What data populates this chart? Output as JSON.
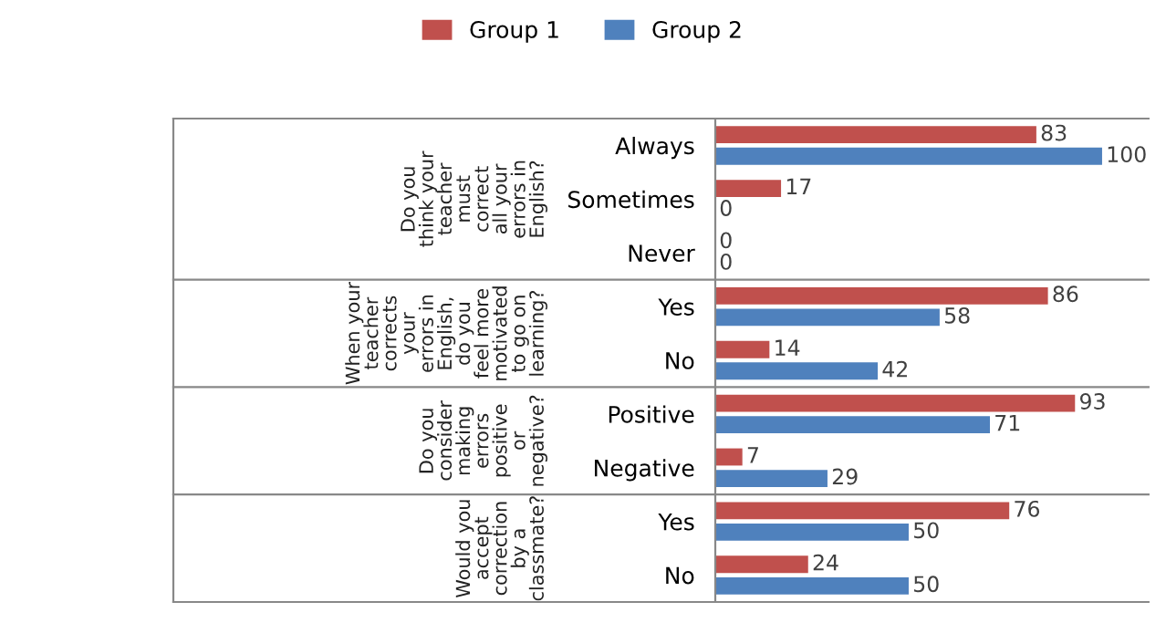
{
  "chart_data": {
    "type": "bar",
    "orientation": "horizontal",
    "categories": [
      "Always",
      "Sometimes",
      "Never",
      "Yes",
      "No",
      "Positive",
      "Negative",
      "Yes",
      "No"
    ],
    "series": [
      {
        "name": "Group 1",
        "color": "#c0504d",
        "values": [
          83,
          17,
          0,
          86,
          14,
          93,
          7,
          76,
          24
        ]
      },
      {
        "name": "Group 2",
        "color": "#4f81bd",
        "values": [
          100,
          0,
          0,
          58,
          42,
          71,
          29,
          50,
          50
        ]
      }
    ],
    "annotations": [
      "Do you think your teacher must correct all your errors in English?",
      "When your teacher corrects your errors in English, do you feel more motivated to go on learning?",
      "Do you consider making errors positive or negative?",
      "Would you accept correction by a classmate?"
    ],
    "data_labels": true,
    "legend": "top",
    "grid": false
  }
}
